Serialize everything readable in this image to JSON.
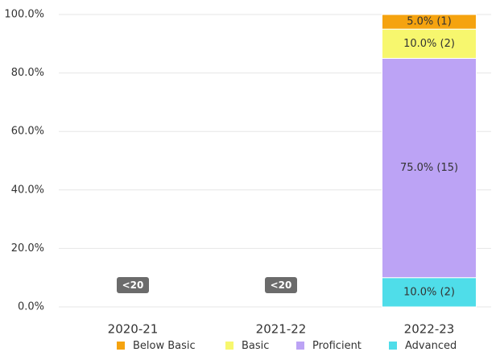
{
  "chart_data": {
    "type": "stacked_bar",
    "categories": [
      "2020-21",
      "2021-22",
      "2022-23"
    ],
    "category_notes": [
      "<20",
      "<20",
      null
    ],
    "series": [
      {
        "name": "Below Basic",
        "color": "#f5a30f",
        "values": [
          null,
          null,
          5
        ],
        "value_labels": [
          null,
          null,
          "5.0% (1)"
        ]
      },
      {
        "name": "Basic",
        "color": "#f7f76e",
        "values": [
          null,
          null,
          10
        ],
        "value_labels": [
          null,
          null,
          "10.0% (2)"
        ]
      },
      {
        "name": "Proficient",
        "color": "#bca3f5",
        "values": [
          null,
          null,
          75
        ],
        "value_labels": [
          null,
          null,
          "75.0% (15)"
        ]
      },
      {
        "name": "Advanced",
        "color": "#4fdde9",
        "values": [
          null,
          null,
          10
        ],
        "value_labels": [
          null,
          null,
          "10.0% (2)"
        ]
      }
    ],
    "ylim": [
      0,
      100
    ],
    "yticks": [
      {
        "value": 0,
        "label": "0.0%"
      },
      {
        "value": 20,
        "label": "20.0%"
      },
      {
        "value": 40,
        "label": "40.0%"
      },
      {
        "value": 60,
        "label": "60.0%"
      },
      {
        "value": 80,
        "label": "80.0%"
      },
      {
        "value": 100,
        "label": "100.0%"
      }
    ],
    "grid": true,
    "legend": "bottom"
  }
}
